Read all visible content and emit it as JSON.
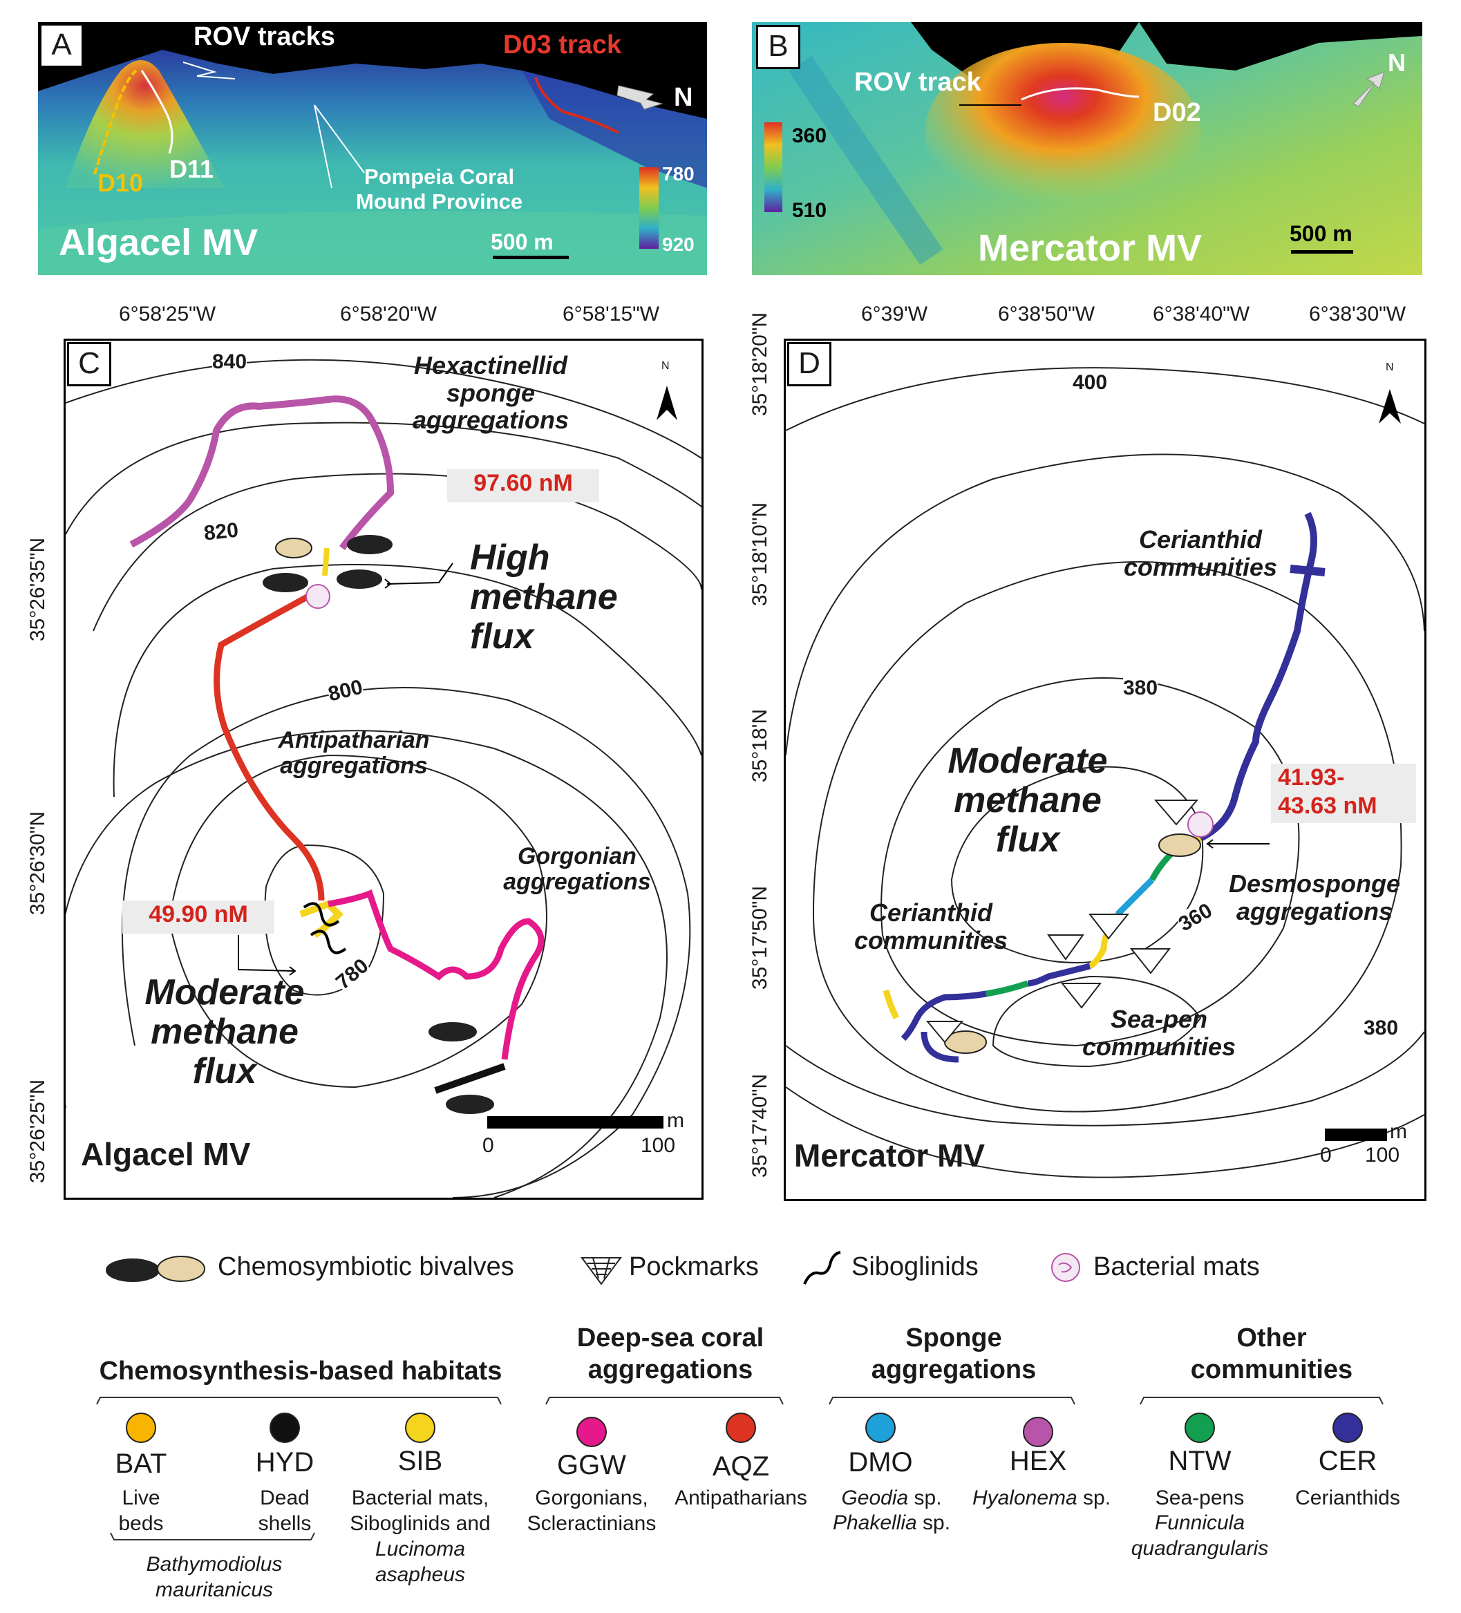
{
  "panel_a": {
    "letter": "A",
    "rov_tracks": "ROV tracks",
    "d03_track": "D03 track",
    "north": "N",
    "d10": "D10",
    "d11": "D11",
    "province": "Pompeia Coral\nMound Province",
    "scale_max": "780",
    "scale_min": "920",
    "scale_bar": "500 m",
    "name": "Algacel MV",
    "colors": {
      "track_d10": "#f5c200",
      "track_d03": "#d92b1a",
      "track_rov": "#ffffff"
    }
  },
  "panel_b": {
    "letter": "B",
    "rov_track": "ROV track",
    "d02": "D02",
    "north": "N",
    "scale_max": "360",
    "scale_min": "510",
    "scale_bar": "500 m",
    "name": "Mercator MV"
  },
  "panel_c": {
    "letter": "C",
    "north": "N",
    "x_ticks": [
      "6°58'25\"W",
      "6°58'20\"W",
      "6°58'15\"W"
    ],
    "y_ticks": [
      "35°26'35\"N",
      "35°26'30\"N",
      "35°26'25\"N"
    ],
    "contours": [
      "840",
      "820",
      "800",
      "780"
    ],
    "hex_label": "Hexactinellid\nsponge\naggregations",
    "high_flux": "High\nmethane\nflux",
    "high_value": "97.60 nM",
    "antip_label": "Antipatharian\naggregations",
    "gorg_label": "Gorgonian\naggregations",
    "mod_value": "49.90 nM",
    "mod_flux": "Moderate\nmethane\nflux",
    "scale_unit": "m",
    "scale_0": "0",
    "scale_100": "100",
    "name": "Algacel MV"
  },
  "panel_d": {
    "letter": "D",
    "north": "N",
    "x_ticks": [
      "6°39'W",
      "6°38'50\"W",
      "6°38'40\"W",
      "6°38'30\"W"
    ],
    "y_ticks": [
      "35°18'20\"N",
      "35°18'10\"N",
      "35°18'N",
      "35°17'50\"N",
      "35°17'40\"N"
    ],
    "contours": [
      "400",
      "380",
      "360",
      "380"
    ],
    "cer_top": "Cerianthid\ncommunities",
    "mod_flux": "Moderate\nmethane\nflux",
    "value": "41.93-\n43.63 nM",
    "desmo": "Desmosponge\naggregations",
    "cer_left": "Cerianthid\ncommunities",
    "seapen": "Sea-pen\ncommunities",
    "scale_unit": "m",
    "scale_0": "0",
    "scale_100": "100",
    "name": "Mercator MV"
  },
  "icons_legend": {
    "bivalves": "Chemosymbiotic bivalves",
    "pockmarks": "Pockmarks",
    "siboglinids": "Siboglinids",
    "mats": "Bacterial mats"
  },
  "groups": [
    {
      "title": "Chemosynthesis-based habitats"
    },
    {
      "title": "Deep-sea coral\naggregations"
    },
    {
      "title": "Sponge\naggregations"
    },
    {
      "title": "Other\ncommunities"
    }
  ],
  "habitats": [
    {
      "code": "BAT",
      "color": "#f7b500",
      "desc": "Live\nbeds"
    },
    {
      "code": "HYD",
      "color": "#111111",
      "desc": "Dead\nshells"
    },
    {
      "code": "SIB",
      "color": "#f5d41d",
      "desc": "Bacterial mats,\nSiboglinids and",
      "desc_it": "Lucinoma\nasapheus"
    },
    {
      "code": "GGW",
      "color": "#e6198a",
      "desc": "Gorgonians,\nScleractinians"
    },
    {
      "code": "AQZ",
      "color": "#dd3322",
      "desc": "Antipatharians"
    },
    {
      "code": "DMO",
      "color": "#1ea0d8",
      "desc_it": "Geodia",
      "desc_sp": " sp.",
      "desc_it2": "Phakellia",
      "desc_sp2": " sp."
    },
    {
      "code": "HEX",
      "color": "#b955a8",
      "desc_it": "Hyalonema",
      "desc_sp": " sp."
    },
    {
      "code": "NTW",
      "color": "#12a050",
      "desc": "Sea-pens",
      "desc_it": "Funnicula\nquadrangularis"
    },
    {
      "code": "CER",
      "color": "#33309a",
      "desc": "Cerianthids"
    }
  ],
  "bathy_label": "Bathymodiolus\nmauritanicus"
}
